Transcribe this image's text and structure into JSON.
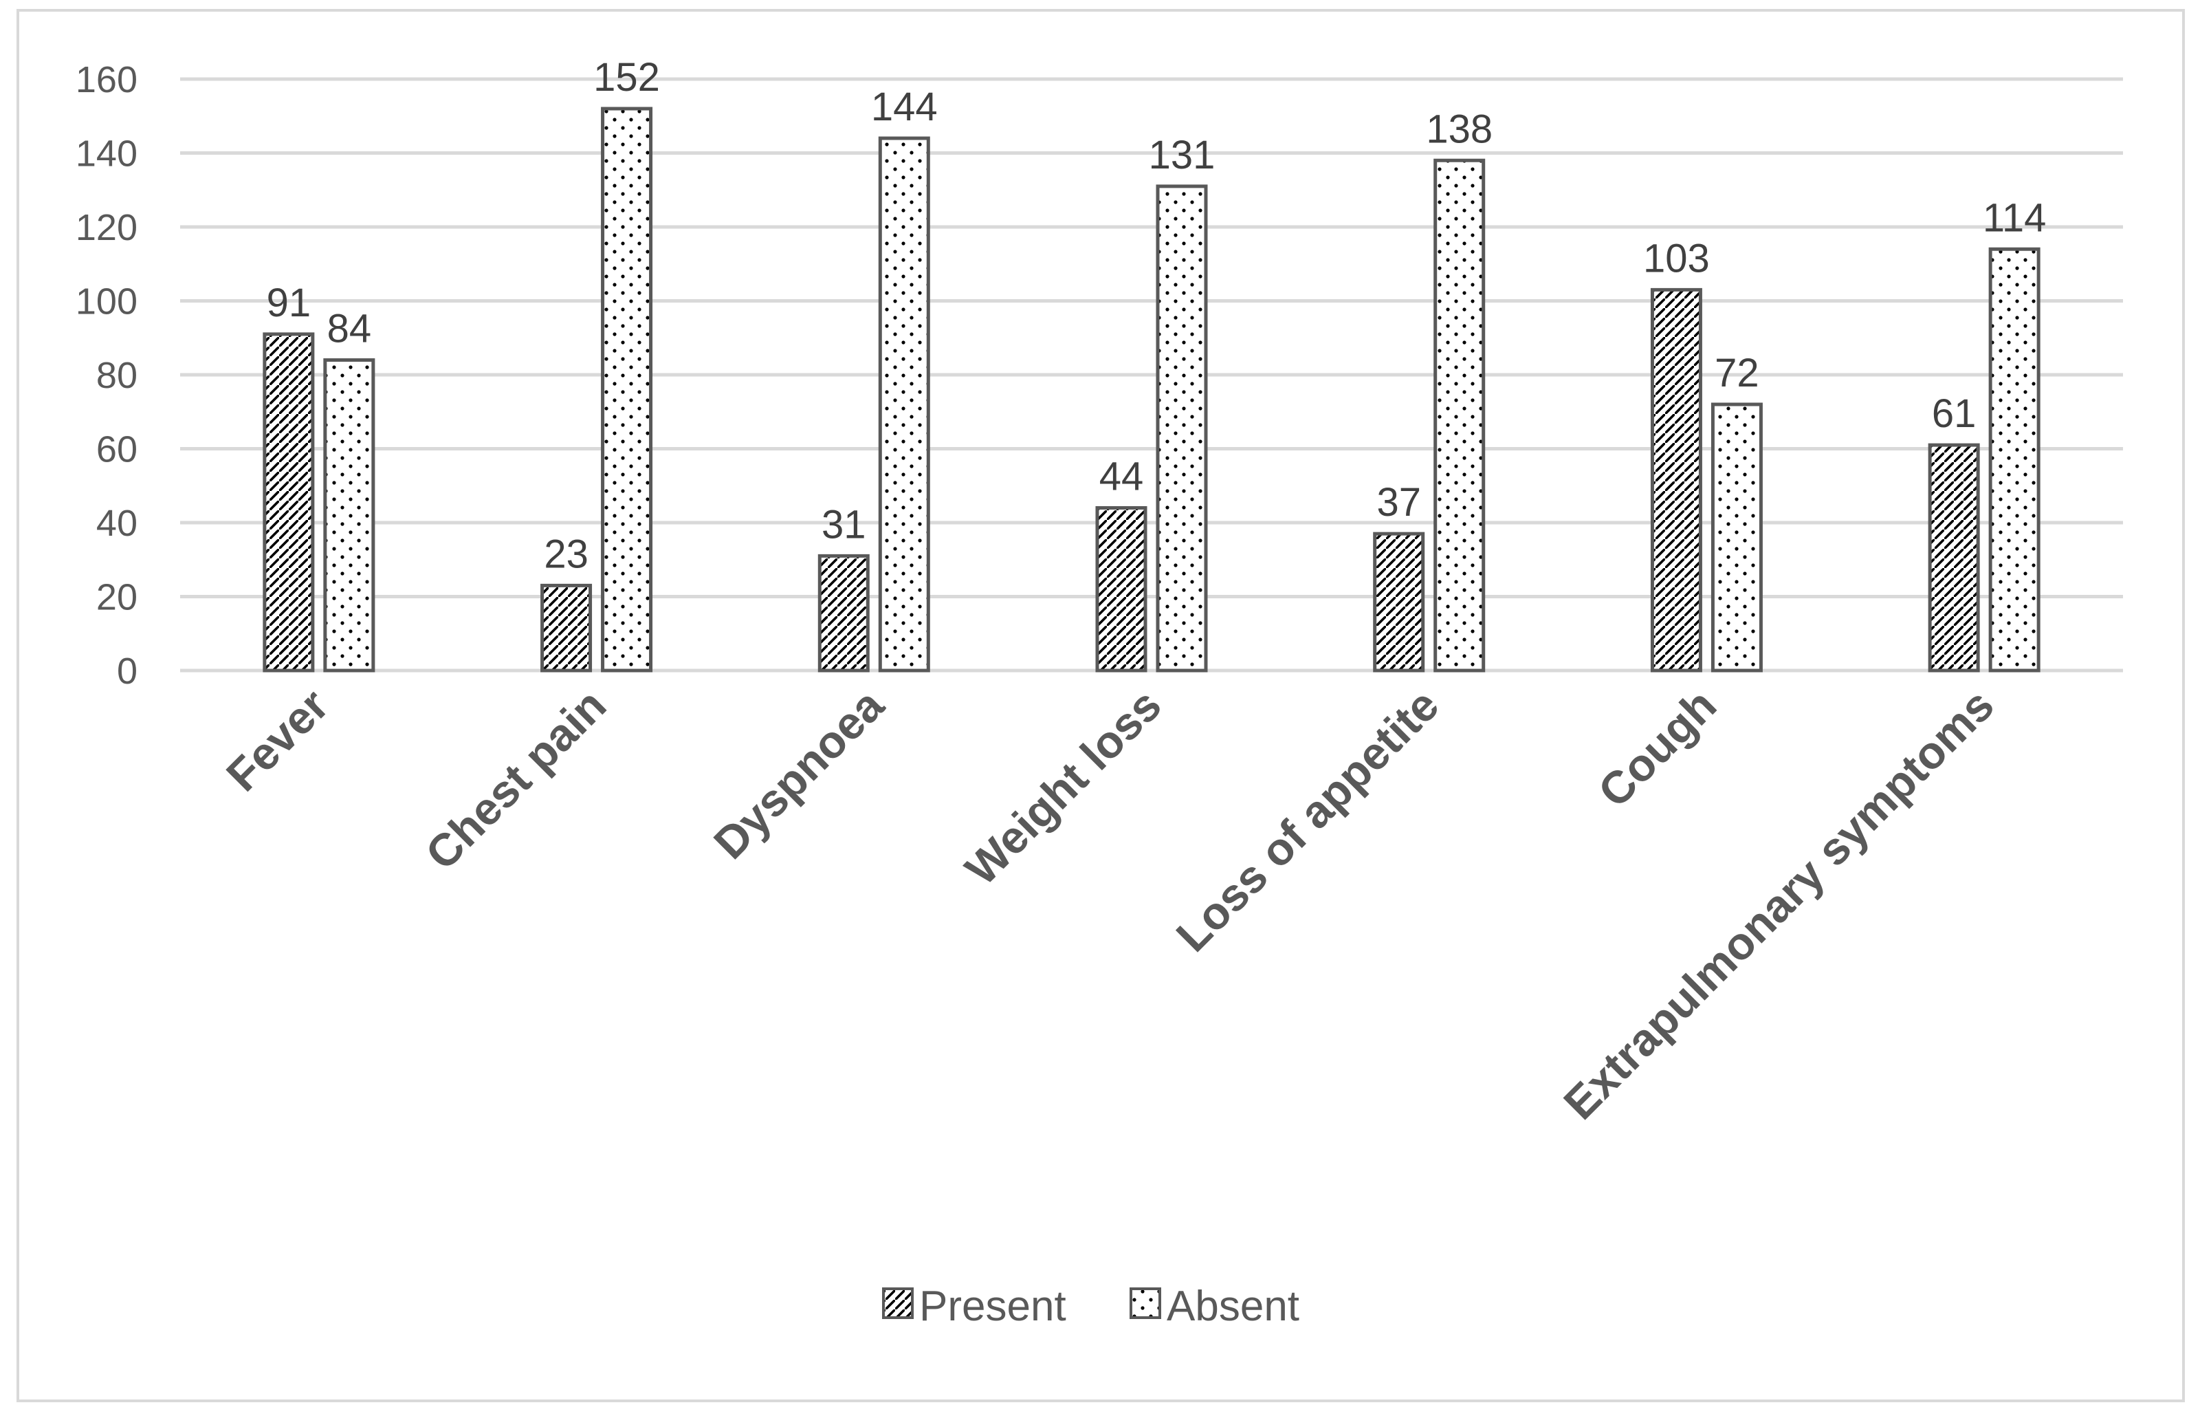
{
  "chart_data": {
    "type": "bar",
    "title": "",
    "xlabel": "",
    "ylabel": "",
    "categories": [
      "Fever",
      "Chest pain",
      "Dyspnoea",
      "Weight loss",
      "Loss of appetite",
      "Cough",
      "Extrapulmonary symptoms"
    ],
    "series": [
      {
        "name": "Present",
        "values": [
          91,
          23,
          31,
          44,
          37,
          103,
          61
        ],
        "pattern": "diagonal-hatch"
      },
      {
        "name": "Absent",
        "values": [
          84,
          152,
          144,
          131,
          138,
          72,
          114
        ],
        "pattern": "dots"
      }
    ],
    "ylim": [
      0,
      160
    ],
    "yticks": [
      0,
      20,
      40,
      60,
      80,
      100,
      120,
      140,
      160
    ],
    "grid": true,
    "legend_position": "bottom-center",
    "colors": {
      "bar_stroke": "#595959",
      "grid": "#d9d9d9",
      "pattern_ink": "#000000",
      "frame": "#d9d9d9"
    }
  }
}
